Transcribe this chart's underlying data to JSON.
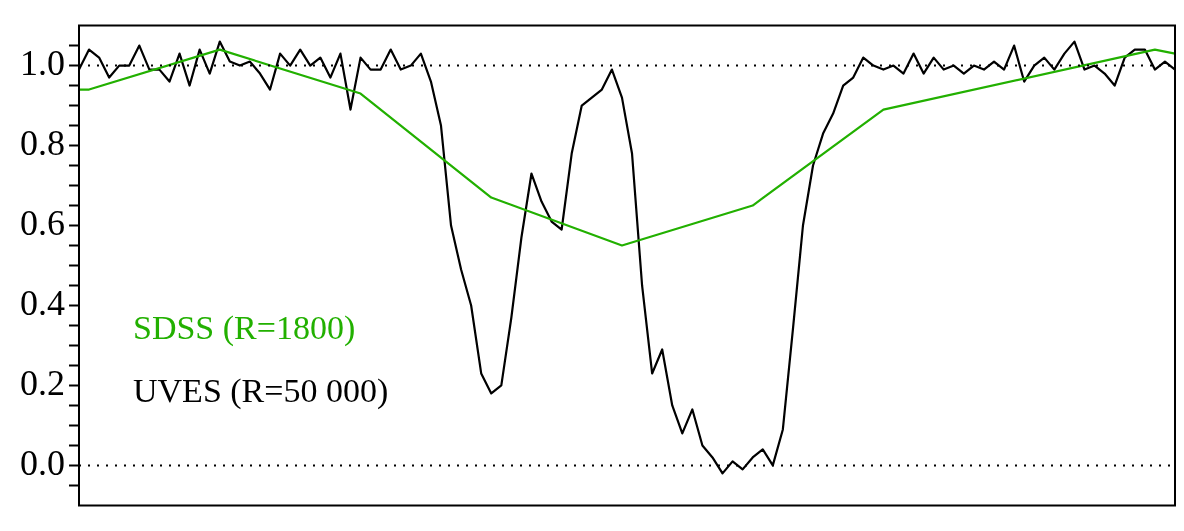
{
  "chart_data": {
    "type": "line",
    "categories": [
      null,
      null,
      null,
      null,
      null,
      null,
      null,
      null,
      null,
      null,
      null,
      null,
      null,
      null,
      null,
      null,
      null,
      null,
      null,
      null,
      null,
      null,
      null,
      null,
      null,
      null,
      null,
      null,
      null,
      null,
      null,
      null,
      null,
      null,
      null,
      null,
      null,
      null,
      null,
      null,
      null,
      null,
      null,
      null,
      null,
      null,
      null,
      null,
      null,
      null,
      null,
      null,
      null,
      null,
      null,
      null,
      null,
      null,
      null,
      null,
      null,
      null,
      null,
      null,
      null,
      null,
      null,
      null,
      null,
      null,
      null,
      null,
      null,
      null,
      null,
      null,
      null,
      null,
      null,
      null,
      null,
      null,
      null,
      null,
      null,
      null,
      null,
      null,
      null,
      null,
      null,
      null,
      null,
      null,
      null,
      null,
      null,
      null,
      null,
      null,
      null,
      null,
      null,
      null,
      null,
      null,
      null,
      null,
      null,
      null
    ],
    "series": [
      {
        "name": "SDSS (R=1800)",
        "color": "#22b000",
        "values": [
          0.94,
          0.94,
          null,
          null,
          null,
          null,
          null,
          null,
          null,
          null,
          null,
          null,
          null,
          null,
          1.04,
          null,
          null,
          null,
          null,
          null,
          null,
          null,
          null,
          null,
          null,
          null,
          null,
          null,
          0.93,
          null,
          null,
          null,
          null,
          null,
          null,
          null,
          null,
          null,
          null,
          null,
          null,
          0.67,
          null,
          null,
          null,
          null,
          null,
          null,
          null,
          null,
          null,
          null,
          null,
          null,
          0.55,
          null,
          null,
          null,
          null,
          null,
          null,
          null,
          null,
          null,
          null,
          null,
          null,
          0.65,
          null,
          null,
          null,
          null,
          null,
          null,
          null,
          null,
          null,
          null,
          null,
          null,
          0.89,
          null,
          null,
          null,
          null,
          null,
          null,
          null,
          null,
          null,
          null,
          null,
          null,
          null,
          null,
          null,
          null,
          null,
          null,
          null,
          null,
          null,
          null,
          null,
          null,
          null,
          null,
          1.04,
          null,
          1.03
        ]
      },
      {
        "name": "UVES (R=50 000)",
        "color": "#000000",
        "values": [
          0.99,
          1.04,
          1.02,
          0.97,
          1.0,
          1.0,
          1.05,
          0.99,
          0.99,
          0.96,
          1.03,
          0.95,
          1.04,
          0.98,
          1.06,
          1.01,
          1.0,
          1.01,
          0.98,
          0.94,
          1.03,
          1.0,
          1.04,
          1.0,
          1.02,
          0.97,
          1.03,
          0.89,
          1.02,
          0.99,
          0.99,
          1.04,
          0.99,
          1.0,
          1.03,
          0.96,
          0.85,
          0.6,
          0.49,
          0.4,
          0.23,
          0.18,
          0.2,
          0.37,
          0.57,
          0.73,
          0.66,
          0.61,
          0.59,
          0.78,
          0.9,
          0.92,
          0.94,
          0.99,
          0.92,
          0.78,
          0.45,
          0.23,
          0.29,
          0.15,
          0.08,
          0.14,
          0.05,
          0.02,
          -0.02,
          0.01,
          -0.01,
          0.02,
          0.04,
          0.0,
          0.09,
          0.34,
          0.6,
          0.75,
          0.83,
          0.88,
          0.95,
          0.97,
          1.02,
          1.0,
          0.99,
          1.0,
          0.98,
          1.03,
          0.98,
          1.02,
          0.99,
          1.0,
          0.98,
          1.0,
          0.99,
          1.01,
          0.99,
          1.05,
          0.96,
          1.0,
          1.02,
          0.99,
          1.03,
          1.06,
          0.99,
          1.0,
          0.98,
          0.95,
          1.02,
          1.04,
          1.04,
          0.99,
          1.01,
          0.99
        ]
      }
    ],
    "ylim": [
      -0.1,
      1.1
    ],
    "yticks": [
      {
        "value": -0.05,
        "label": null
      },
      {
        "value": 0,
        "label": "0.0"
      },
      {
        "value": 0.05,
        "label": null
      },
      {
        "value": 0.1,
        "label": null
      },
      {
        "value": 0.15,
        "label": null
      },
      {
        "value": 0.2,
        "label": "0.2"
      },
      {
        "value": 0.25,
        "label": null
      },
      {
        "value": 0.3,
        "label": null
      },
      {
        "value": 0.35,
        "label": null
      },
      {
        "value": 0.4,
        "label": "0.4"
      },
      {
        "value": 0.45,
        "label": null
      },
      {
        "value": 0.5,
        "label": null
      },
      {
        "value": 0.55,
        "label": null
      },
      {
        "value": 0.6,
        "label": "0.6"
      },
      {
        "value": 0.65,
        "label": null
      },
      {
        "value": 0.7,
        "label": null
      },
      {
        "value": 0.75,
        "label": null
      },
      {
        "value": 0.8,
        "label": "0.8"
      },
      {
        "value": 0.85,
        "label": null
      },
      {
        "value": 0.9,
        "label": null
      },
      {
        "value": 0.95,
        "label": null
      },
      {
        "value": 1,
        "label": "1.0"
      },
      {
        "value": 1.05,
        "label": null
      }
    ],
    "ref_lines": [
      {
        "axis": "y",
        "value": 1,
        "label": null,
        "color": "#000000",
        "line_style": "dotted"
      },
      {
        "axis": "y",
        "value": 0,
        "label": null,
        "color": "#000000",
        "line_style": "dotted"
      }
    ],
    "legend": "bottom left",
    "tick_labels": "y"
  }
}
